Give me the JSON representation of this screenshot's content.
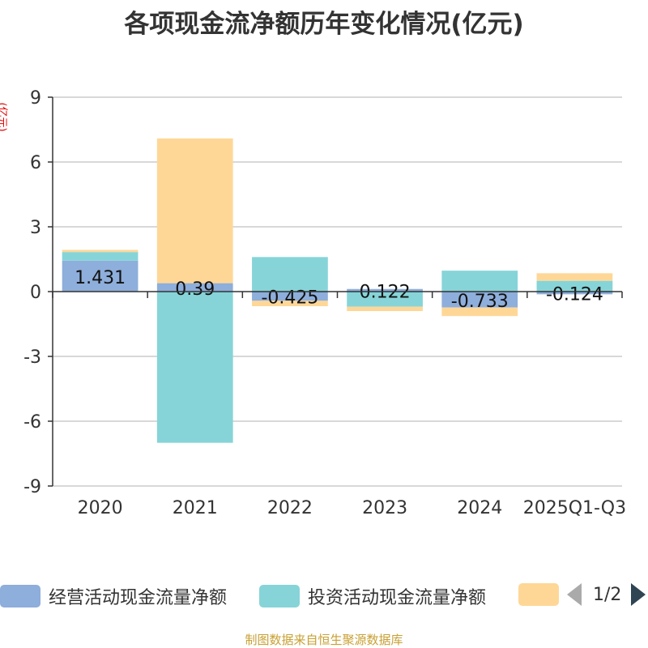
{
  "title": "各项现金流净额历年变化情况(亿元)",
  "y_unit": "(亿元)",
  "source": "制图数据来自恒生聚源数据库",
  "legend": {
    "items": [
      {
        "label": "经营活动现金流量净额",
        "color": "#8eaedb"
      },
      {
        "label": "投资活动现金流量净额",
        "color": "#86d4d8"
      },
      {
        "label": "",
        "color": "#fed797"
      }
    ],
    "pager": "1/2"
  },
  "chart_data": {
    "type": "bar",
    "stacked": true,
    "categories": [
      "2020",
      "2021",
      "2022",
      "2023",
      "2024",
      "2025Q1-Q3"
    ],
    "ylim": [
      -9,
      9
    ],
    "yticks": [
      9,
      6,
      3,
      0,
      -3,
      -6,
      -9
    ],
    "grid": true,
    "series": [
      {
        "name": "经营活动现金流量净额",
        "color": "#8eaedb",
        "values": [
          1.431,
          0.39,
          -0.425,
          0.122,
          -0.733,
          -0.124
        ],
        "labels": [
          "1.431",
          "0.39",
          "-0.425",
          "0.122",
          "-0.733",
          "-0.124"
        ]
      },
      {
        "name": "投资活动现金流量净额",
        "color": "#86d4d8",
        "values": [
          0.4,
          -7.0,
          1.6,
          -0.7,
          0.97,
          0.5
        ]
      },
      {
        "name": "",
        "color": "#fed797",
        "values": [
          0.1,
          6.7,
          -0.25,
          -0.2,
          -0.4,
          0.35
        ]
      }
    ]
  }
}
